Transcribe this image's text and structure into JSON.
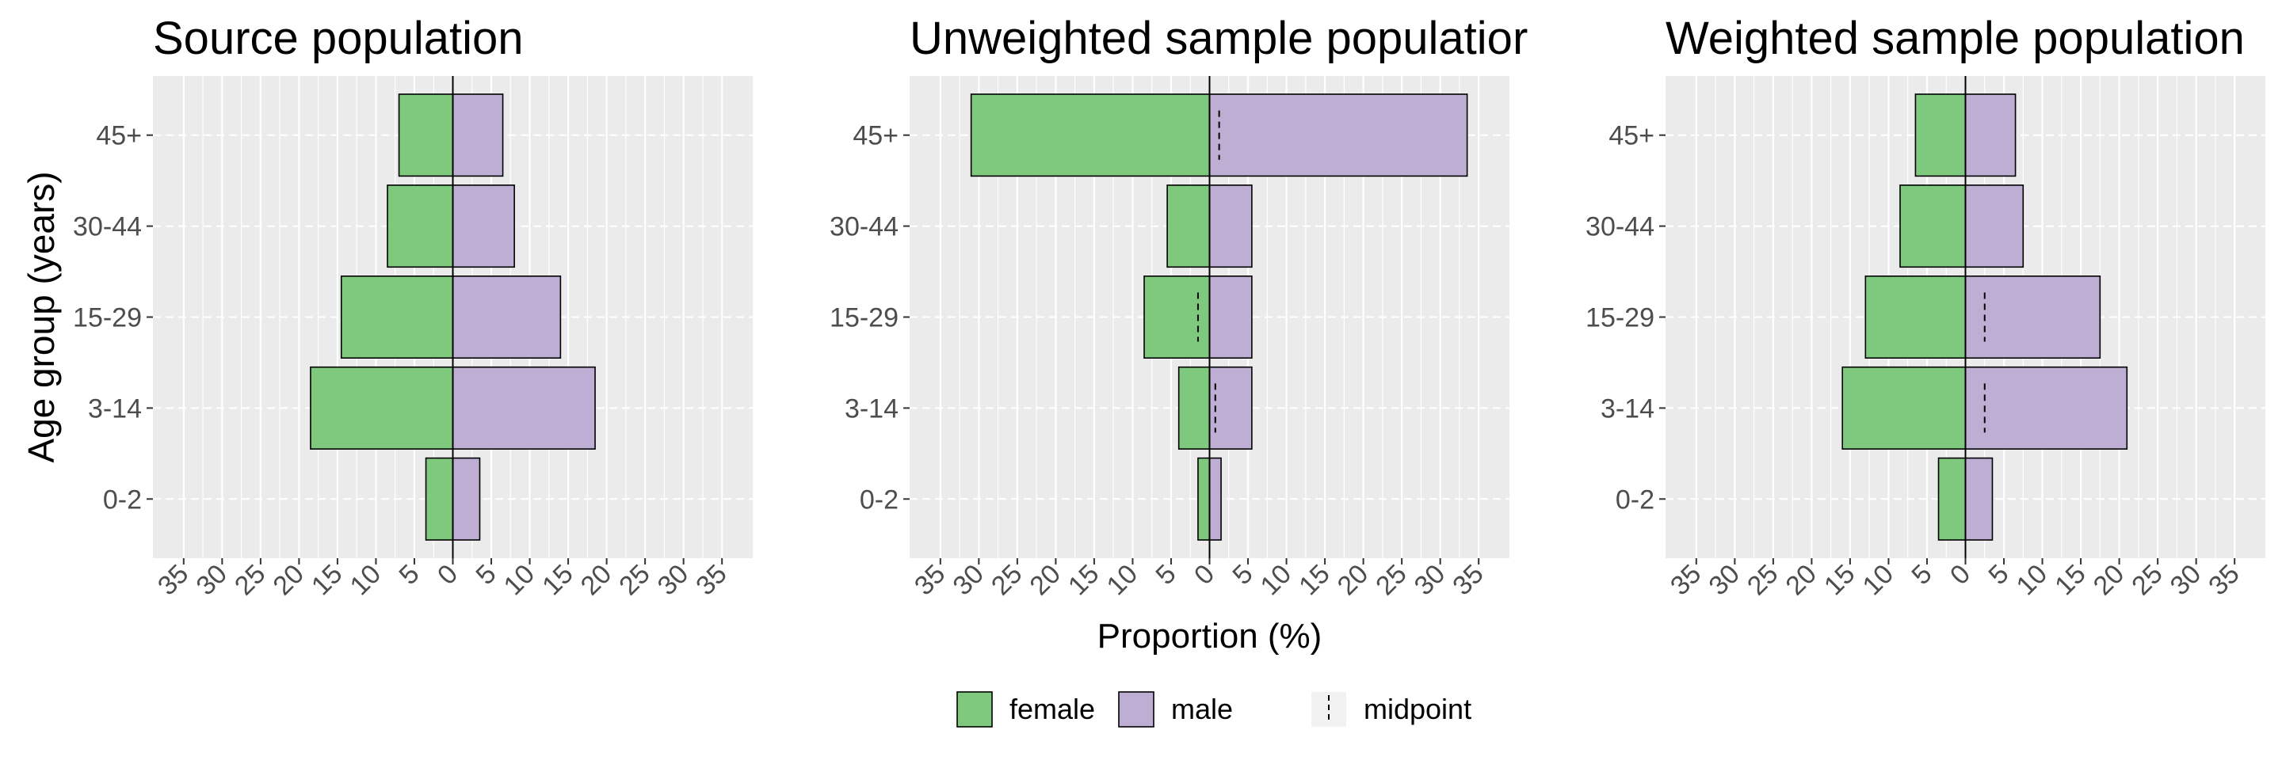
{
  "chart_data": [
    {
      "type": "bar",
      "orientation": "horizontal",
      "title": "Source population",
      "ylabel": "Age group (years)",
      "xlabel": "",
      "categories": [
        "0-2",
        "3-14",
        "15-29",
        "30-44",
        "45+"
      ],
      "series": [
        {
          "name": "female",
          "values": [
            -3.5,
            -18.5,
            -14.5,
            -8.5,
            -7
          ]
        },
        {
          "name": "male",
          "values": [
            3.5,
            18.5,
            14.0,
            8.0,
            6.5
          ]
        }
      ],
      "midpoints": [],
      "xlim": [
        -39,
        39
      ],
      "xticks": [
        -35,
        -30,
        -25,
        -20,
        -15,
        -10,
        -5,
        0,
        5,
        10,
        15,
        20,
        25,
        30,
        35
      ],
      "xtick_labels": [
        "35",
        "30",
        "25",
        "20",
        "15",
        "10",
        "5",
        "0",
        "5",
        "10",
        "15",
        "20",
        "25",
        "30",
        "35"
      ],
      "grid": true
    },
    {
      "type": "bar",
      "orientation": "horizontal",
      "title": "Unweighted sample populatior",
      "ylabel": "",
      "xlabel": "Proportion (%)",
      "categories": [
        "0-2",
        "3-14",
        "15-29",
        "30-44",
        "45+"
      ],
      "series": [
        {
          "name": "female",
          "values": [
            -1.5,
            -4,
            -8.5,
            -5.5,
            -31
          ]
        },
        {
          "name": "male",
          "values": [
            1.5,
            5.5,
            5.5,
            5.5,
            33.5
          ]
        }
      ],
      "midpoints": [
        {
          "category": "3-14",
          "value": 0.75
        },
        {
          "category": "15-29",
          "value": -1.5
        },
        {
          "category": "45+",
          "value": 1.25
        }
      ],
      "xlim": [
        -39,
        39
      ],
      "xticks": [
        -35,
        -30,
        -25,
        -20,
        -15,
        -10,
        -5,
        0,
        5,
        10,
        15,
        20,
        25,
        30,
        35
      ],
      "xtick_labels": [
        "35",
        "30",
        "25",
        "20",
        "15",
        "10",
        "5",
        "0",
        "5",
        "10",
        "15",
        "20",
        "25",
        "30",
        "35"
      ],
      "grid": true
    },
    {
      "type": "bar",
      "orientation": "horizontal",
      "title": "Weighted sample population",
      "ylabel": "",
      "xlabel": "",
      "categories": [
        "0-2",
        "3-14",
        "15-29",
        "30-44",
        "45+"
      ],
      "series": [
        {
          "name": "female",
          "values": [
            -3.5,
            -16,
            -13,
            -8.5,
            -6.5
          ]
        },
        {
          "name": "male",
          "values": [
            3.5,
            21,
            17.5,
            7.5,
            6.5
          ]
        }
      ],
      "midpoints": [
        {
          "category": "3-14",
          "value": 2.5
        },
        {
          "category": "15-29",
          "value": 2.5
        },
        {
          "category": "45+",
          "value": 0
        }
      ],
      "xlim": [
        -39,
        39
      ],
      "xticks": [
        -35,
        -30,
        -25,
        -20,
        -15,
        -10,
        -5,
        0,
        5,
        10,
        15,
        20,
        25,
        30,
        35
      ],
      "xtick_labels": [
        "35",
        "30",
        "25",
        "20",
        "15",
        "10",
        "5",
        "0",
        "5",
        "10",
        "15",
        "20",
        "25",
        "30",
        "35"
      ],
      "grid": true
    }
  ],
  "legend": {
    "position": "bottom",
    "items": [
      {
        "label": "female",
        "kind": "fill",
        "color": "#7FC97F"
      },
      {
        "label": "male",
        "kind": "fill",
        "color": "#BEAED4"
      },
      {
        "label": "midpoint",
        "kind": "dashed-line",
        "color": "#000000"
      }
    ]
  },
  "colors": {
    "female": "#7FC97F",
    "male": "#BEAED4",
    "panel_background": "#EBEBEB",
    "grid": "#FFFFFF",
    "text": "#000000",
    "tick_text": "#4D4D4D"
  }
}
